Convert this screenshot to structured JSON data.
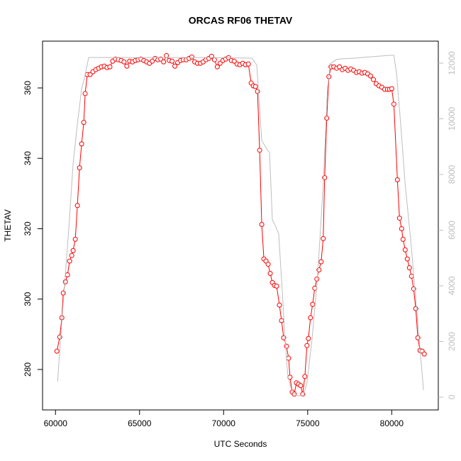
{
  "chart_data": {
    "type": "line",
    "title": "ORCAS RF06 THETAV",
    "xlabel": "UTC Seconds",
    "ylabel": "THETAV",
    "xlim": [
      59230,
      82770
    ],
    "xticks": [
      60000,
      65000,
      70000,
      75000,
      80000
    ],
    "ylim": [
      268.5,
      373.3
    ],
    "yticks": [
      280,
      300,
      320,
      340,
      360
    ],
    "y2lim": [
      -460,
      12790
    ],
    "y2ticks": [
      0,
      2000,
      4000,
      6000,
      8000,
      10000,
      12000
    ],
    "y2_color": "#bebebe",
    "series": [
      {
        "color": "#ff0000",
        "markers": true,
        "axis": "y",
        "x": [
          60084,
          60252,
          60378,
          60462,
          60588,
          60714,
          60840,
          60966,
          61050,
          61177,
          61303,
          61429,
          61555,
          61681,
          61765,
          61891,
          62059,
          62227,
          62395,
          62563,
          62731,
          62899,
          63067,
          63235,
          63404,
          63572,
          63740,
          63908,
          64076,
          64244,
          64412,
          64580,
          64748,
          64916,
          65084,
          65252,
          65420,
          65589,
          65757,
          65925,
          66093,
          66261,
          66429,
          66597,
          66765,
          66933,
          67101,
          67269,
          67437,
          67605,
          67773,
          67942,
          68110,
          68278,
          68446,
          68614,
          68782,
          68950,
          69118,
          69286,
          69454,
          69622,
          69790,
          69958,
          70126,
          70294,
          70462,
          70630,
          70798,
          70966,
          71135,
          71303,
          71471,
          71639,
          71765,
          71891,
          72017,
          72143,
          72269,
          72395,
          72521,
          72647,
          72773,
          72899,
          73025,
          73151,
          73320,
          73446,
          73572,
          73740,
          73866,
          73950,
          74076,
          74202,
          74328,
          74454,
          74580,
          74706,
          74832,
          74958,
          75042,
          75168,
          75294,
          75421,
          75547,
          75673,
          75799,
          75925,
          76009,
          76135,
          76261,
          76387,
          76555,
          76723,
          76891,
          77059,
          77227,
          77395,
          77563,
          77731,
          77899,
          78067,
          78235,
          78403,
          78572,
          78740,
          78908,
          79076,
          79244,
          79412,
          79580,
          79748,
          79874,
          80000,
          80126,
          80337,
          80463,
          80589,
          80673,
          80799,
          80925,
          81051,
          81177,
          81303,
          81429,
          81555,
          81681,
          81808,
          81934
        ],
        "values": [
          285.2,
          289.2,
          294.7,
          301.7,
          304.9,
          306.9,
          310.8,
          312.4,
          313.8,
          317.0,
          326.6,
          337.3,
          344.1,
          350.2,
          358.4,
          363.8,
          363.8,
          364.6,
          365.2,
          365.6,
          366.0,
          366.2,
          365.8,
          366.0,
          367.6,
          368.2,
          368.0,
          367.8,
          367.4,
          366.2,
          367.6,
          367.4,
          367.8,
          368.0,
          368.2,
          367.8,
          367.4,
          367.0,
          367.6,
          368.4,
          368.0,
          368.2,
          367.4,
          369.2,
          367.8,
          367.6,
          366.2,
          367.2,
          367.8,
          368.0,
          368.0,
          368.4,
          368.8,
          367.4,
          367.0,
          367.0,
          367.4,
          368.0,
          368.4,
          369.0,
          368.0,
          366.0,
          367.0,
          367.8,
          368.2,
          368.6,
          367.8,
          367.6,
          366.8,
          366.6,
          367.0,
          366.6,
          366.8,
          361.4,
          360.6,
          360.4,
          359.0,
          342.3,
          321.2,
          311.4,
          310.8,
          309.9,
          307.3,
          304.7,
          303.9,
          303.7,
          298.3,
          293.9,
          289.0,
          286.6,
          283.2,
          277.8,
          273.6,
          273.0,
          276.2,
          275.8,
          275.4,
          273.0,
          278.0,
          286.8,
          288.8,
          294.7,
          298.5,
          303.1,
          305.7,
          308.3,
          310.6,
          317.2,
          334.5,
          351.4,
          363.2,
          366.0,
          366.0,
          365.6,
          366.0,
          365.2,
          365.6,
          365.0,
          365.4,
          365.0,
          364.4,
          364.6,
          364.2,
          364.4,
          364.0,
          363.4,
          362.4,
          361.2,
          360.6,
          360.2,
          359.6,
          359.6,
          359.6,
          359.8,
          355.4,
          333.9,
          323.0,
          320.0,
          317.0,
          314.0,
          311.4,
          308.9,
          306.5,
          302.9,
          297.3,
          289.0,
          285.4,
          285.2,
          284.4
        ]
      },
      {
        "color": "#bebebe",
        "markers": false,
        "axis": "y2",
        "x": [
          60126,
          60294,
          60546,
          60798,
          61050,
          61303,
          61555,
          61723,
          61975,
          63067,
          65168,
          69370,
          71681,
          71975,
          72101,
          72269,
          72563,
          72731,
          72899,
          73067,
          73277,
          73488,
          73656,
          73824,
          74076,
          74412,
          74748,
          74958,
          75252,
          75589,
          75925,
          76177,
          76345,
          76723,
          76933,
          77773,
          79874,
          80126,
          80295,
          80547,
          80799,
          81135,
          81387,
          81639,
          81891
        ],
        "values": [
          560,
          2040,
          4080,
          6115,
          8410,
          9810,
          11080,
          11470,
          12200,
          12200,
          12200,
          12200,
          12180,
          11925,
          10700,
          9220,
          8920,
          8790,
          6370,
          6170,
          5860,
          3820,
          2040,
          760,
          180,
          50,
          50,
          510,
          2040,
          4330,
          7640,
          11080,
          11980,
          12130,
          12150,
          12180,
          12280,
          12280,
          11590,
          9680,
          7640,
          5600,
          3820,
          2040,
          255
        ]
      }
    ]
  }
}
